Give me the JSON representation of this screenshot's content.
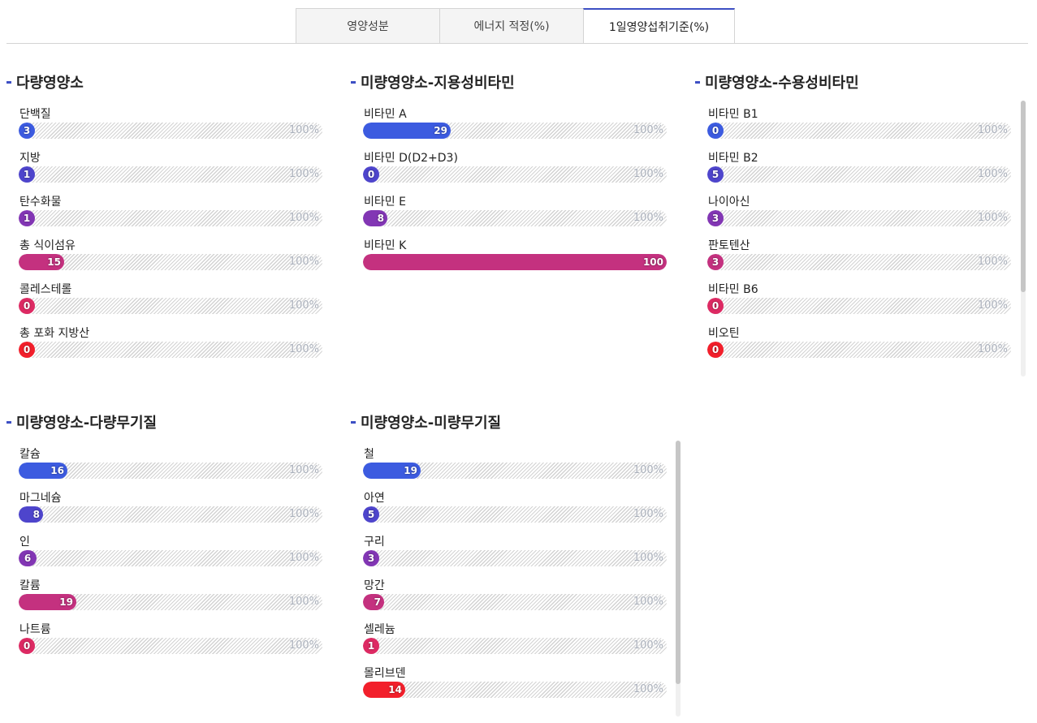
{
  "tabs": [
    {
      "label": "영양성분"
    },
    {
      "label": "에너지 적정(%)"
    },
    {
      "label": "1일영양섭취기준(%)"
    }
  ],
  "max_label": "100%",
  "colors": {
    "accent": "#3d4fc4",
    "row_colors": [
      "#3c5be0",
      "#4e45cc",
      "#8236b4",
      "#c4317f",
      "#dd2a63",
      "#f21f2b"
    ]
  },
  "sections": [
    {
      "title": "다량영양소",
      "items": [
        {
          "label": "단백질",
          "value": "3",
          "percent": 3
        },
        {
          "label": "지방",
          "value": "1",
          "percent": 1
        },
        {
          "label": "탄수화물",
          "value": "1",
          "percent": 1
        },
        {
          "label": "총 식이섬유",
          "value": "15",
          "percent": 15
        },
        {
          "label": "콜레스테롤",
          "value": "0",
          "percent": 0
        },
        {
          "label": "총 포화 지방산",
          "value": "0",
          "percent": 0
        }
      ]
    },
    {
      "title": "미량영양소-지용성비타민",
      "items": [
        {
          "label": "비타민 A",
          "value": "29",
          "percent": 29
        },
        {
          "label": "비타민 D(D2+D3)",
          "value": "0",
          "percent": 0
        },
        {
          "label": "비타민 E",
          "value": "8",
          "percent": 8
        },
        {
          "label": "비타민 K",
          "value": "100",
          "percent": 100
        }
      ]
    },
    {
      "title": "미량영양소-수용성비타민",
      "items": [
        {
          "label": "비타민 B1",
          "value": "0",
          "percent": 0
        },
        {
          "label": "비타민 B2",
          "value": "5",
          "percent": 5
        },
        {
          "label": "나이아신",
          "value": "3",
          "percent": 3
        },
        {
          "label": "판토텐산",
          "value": "3",
          "percent": 3
        },
        {
          "label": "비타민 B6",
          "value": "0",
          "percent": 0
        },
        {
          "label": "비오틴",
          "value": "0",
          "percent": 0
        }
      ]
    },
    {
      "title": "미량영양소-다량무기질",
      "items": [
        {
          "label": "칼슘",
          "value": "16",
          "percent": 16
        },
        {
          "label": "마그네슘",
          "value": "8",
          "percent": 8
        },
        {
          "label": "인",
          "value": "6",
          "percent": 6
        },
        {
          "label": "칼륨",
          "value": "19",
          "percent": 19
        },
        {
          "label": "나트륨",
          "value": "0",
          "percent": 0
        }
      ]
    },
    {
      "title": "미량영양소-미량무기질",
      "items": [
        {
          "label": "철",
          "value": "19",
          "percent": 19
        },
        {
          "label": "아연",
          "value": "5",
          "percent": 5
        },
        {
          "label": "구리",
          "value": "3",
          "percent": 3
        },
        {
          "label": "망간",
          "value": "7",
          "percent": 7
        },
        {
          "label": "셀레늄",
          "value": "1",
          "percent": 1
        },
        {
          "label": "몰리브덴",
          "value": "14",
          "percent": 14
        }
      ]
    }
  ]
}
